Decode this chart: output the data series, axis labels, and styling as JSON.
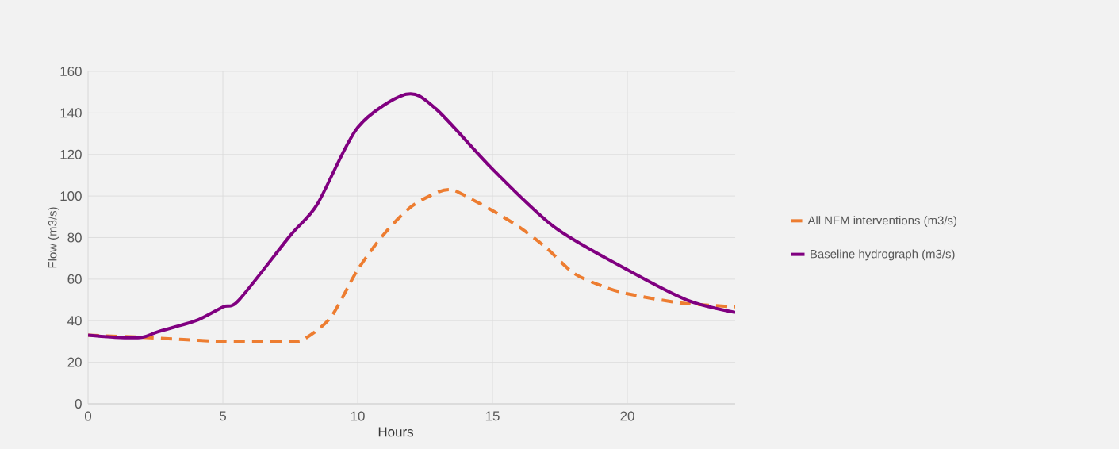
{
  "chart_data": {
    "type": "line",
    "xlabel": "Hours",
    "ylabel": "Flow (m3/s)",
    "xlim": [
      0,
      24
    ],
    "ylim": [
      0,
      160
    ],
    "xticks": [
      0,
      5,
      10,
      15,
      20
    ],
    "yticks": [
      0,
      20,
      40,
      60,
      80,
      100,
      120,
      140,
      160
    ],
    "grid": true,
    "legend": "right",
    "marker": "none",
    "series": [
      {
        "name": "All NFM interventions (m3/s)",
        "color": "#ed7d31",
        "line_style": "dashed",
        "x": [
          0,
          2,
          5,
          7.5,
          8,
          9,
          10,
          11,
          12,
          13,
          13.5,
          14,
          15,
          16,
          17,
          18,
          19,
          20,
          22,
          24
        ],
        "values": [
          33,
          32,
          30,
          30,
          31,
          41.6,
          64.5,
          82,
          95,
          102,
          103,
          100,
          93,
          85,
          75,
          63,
          57,
          53,
          48.5,
          46.7
        ]
      },
      {
        "name": "Baseline hydrograph (m3/s)",
        "color": "#800080",
        "line_style": "solid",
        "x": [
          0,
          1,
          2,
          2.6,
          4,
          5,
          5.6,
          7.5,
          8.5,
          10,
          11.8,
          12.9,
          15,
          17.3,
          20,
          22.2,
          24
        ],
        "values": [
          33,
          32,
          32,
          34.7,
          40,
          46.6,
          50,
          81,
          96,
          133,
          149,
          142,
          113,
          85,
          64.5,
          50,
          44
        ]
      }
    ]
  }
}
